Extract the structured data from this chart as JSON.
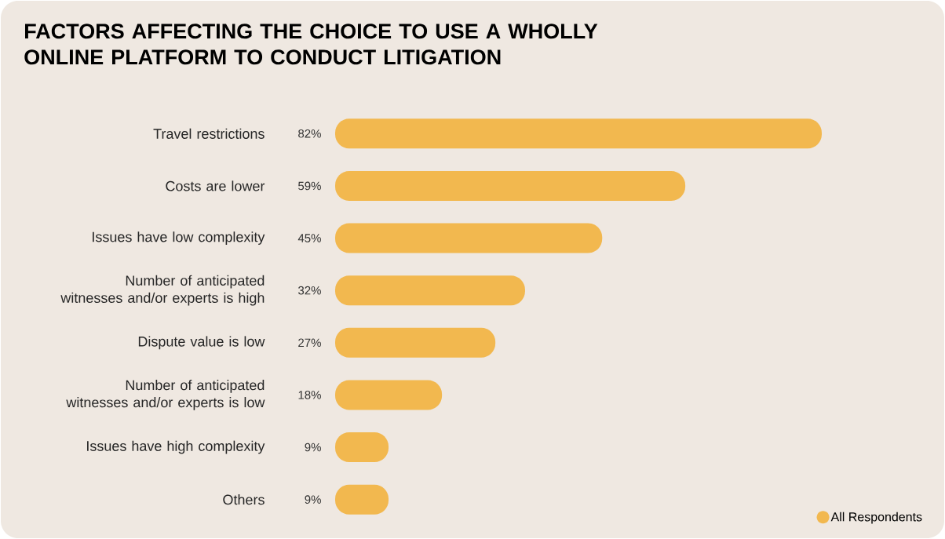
{
  "chart_data": {
    "type": "bar",
    "orientation": "horizontal",
    "title": "FACTORS AFFECTING THE CHOICE TO USE A WHOLLY ONLINE PLATFORM TO CONDUCT LITIGATION",
    "categories": [
      "Travel restrictions",
      "Costs are lower",
      "Issues have low complexity",
      "Number of anticipated witnesses and/or experts is high",
      "Dispute value is low",
      "Number of anticipated witnesses and/or experts is low",
      "Issues have high complexity",
      "Others"
    ],
    "series": [
      {
        "name": "All Respondents",
        "color": "#f2b84f",
        "values": [
          82,
          59,
          45,
          32,
          27,
          18,
          9,
          9
        ],
        "value_labels": [
          "82%",
          "59%",
          "45%",
          "32%",
          "27%",
          "18%",
          "9%",
          "9%"
        ]
      }
    ],
    "legend": "bottom right"
  }
}
